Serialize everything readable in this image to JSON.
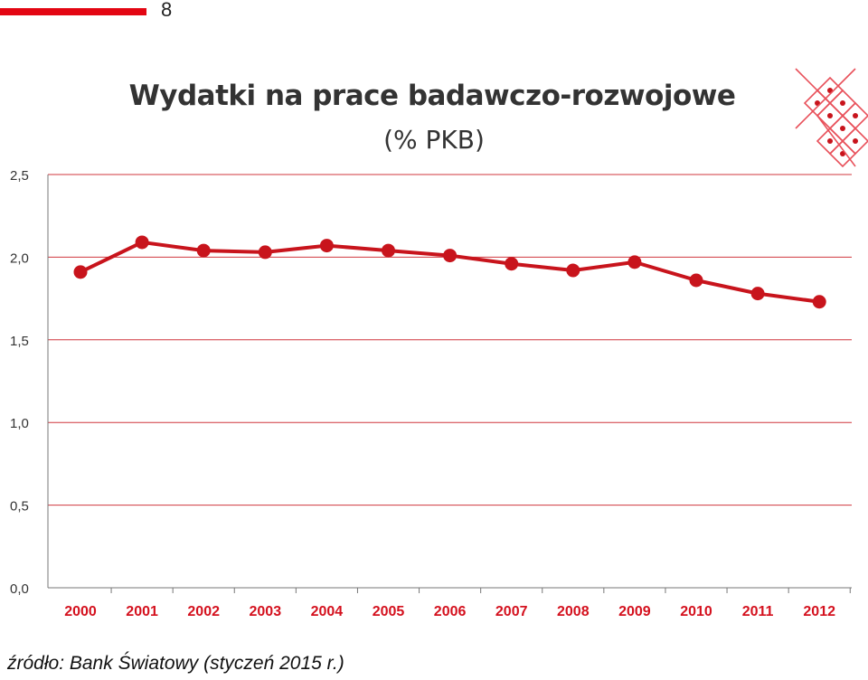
{
  "header": {
    "page_number": "8"
  },
  "colors": {
    "accent": "#e30613",
    "line": "#c8141c",
    "grid": "#c8141c"
  },
  "source_note": "źródło: Bank Światowy (styczeń 2015 r.)",
  "chart_data": {
    "type": "line",
    "title": "Wydatki na prace badawczo-rozwojowe",
    "subtitle": "(% PKB)",
    "xlabel": "",
    "ylabel": "",
    "categories": [
      "2000",
      "2001",
      "2002",
      "2003",
      "2004",
      "2005",
      "2006",
      "2007",
      "2008",
      "2009",
      "2010",
      "2011",
      "2012"
    ],
    "values": [
      1.91,
      2.09,
      2.04,
      2.03,
      2.07,
      2.04,
      2.01,
      1.96,
      1.92,
      1.97,
      1.86,
      1.78,
      1.73
    ],
    "ylim": [
      0,
      2.5
    ],
    "yticks": [
      "0,0",
      "0,5",
      "1,0",
      "1,5",
      "2,0",
      "2,5"
    ],
    "grid": true,
    "legend": "none"
  },
  "logo": {
    "name": "diamond-dots-logo"
  }
}
